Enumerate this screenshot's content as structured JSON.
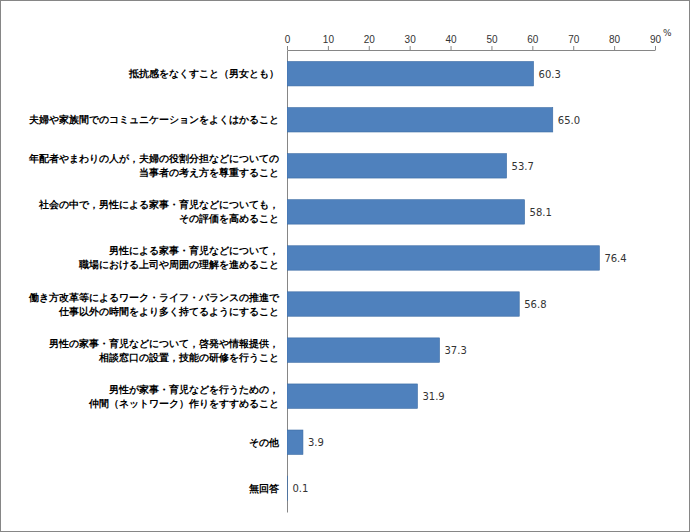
{
  "chart_data": {
    "type": "bar",
    "orientation": "horizontal",
    "categories": [
      "抵抗感をなくすこと（男女とも）",
      "夫婦や家族間でのコミュニケーションをよくはかること",
      "年配者やまわりの人が，夫婦の役割分担などについての\n当事者の考え方を尊重すること",
      "社会の中で，男性による家事・育児などについても，\nその評価を高めること",
      "男性による家事・育児などについて，\n職場における上司や周囲の理解を進めること",
      "働き方改革等によるワーク・ライフ・バランスの推進で\n仕事以外の時間をより多く持てるようにすること",
      "男性の家事・育児などについて，啓発や情報提供，\n相談窓口の設置，技能の研修を行うこと",
      "男性が家事・育児などを行うための，\n仲間（ネットワーク）作りをすすめること",
      "その他",
      "無回答"
    ],
    "values": [
      60.3,
      65.0,
      53.7,
      58.1,
      76.4,
      56.8,
      37.3,
      31.9,
      3.9,
      0.1
    ],
    "value_labels": [
      "60.3",
      "65.0",
      "53.7",
      "58.1",
      "76.4",
      "56.8",
      "37.3",
      "31.9",
      "3.9",
      "0.1"
    ],
    "color": "#4f81bd",
    "xlabel": "%",
    "xlim": [
      0,
      90
    ],
    "xticks": [
      0,
      10,
      20,
      30,
      40,
      50,
      60,
      70,
      80,
      90
    ],
    "grid": false,
    "data_labels": true
  }
}
